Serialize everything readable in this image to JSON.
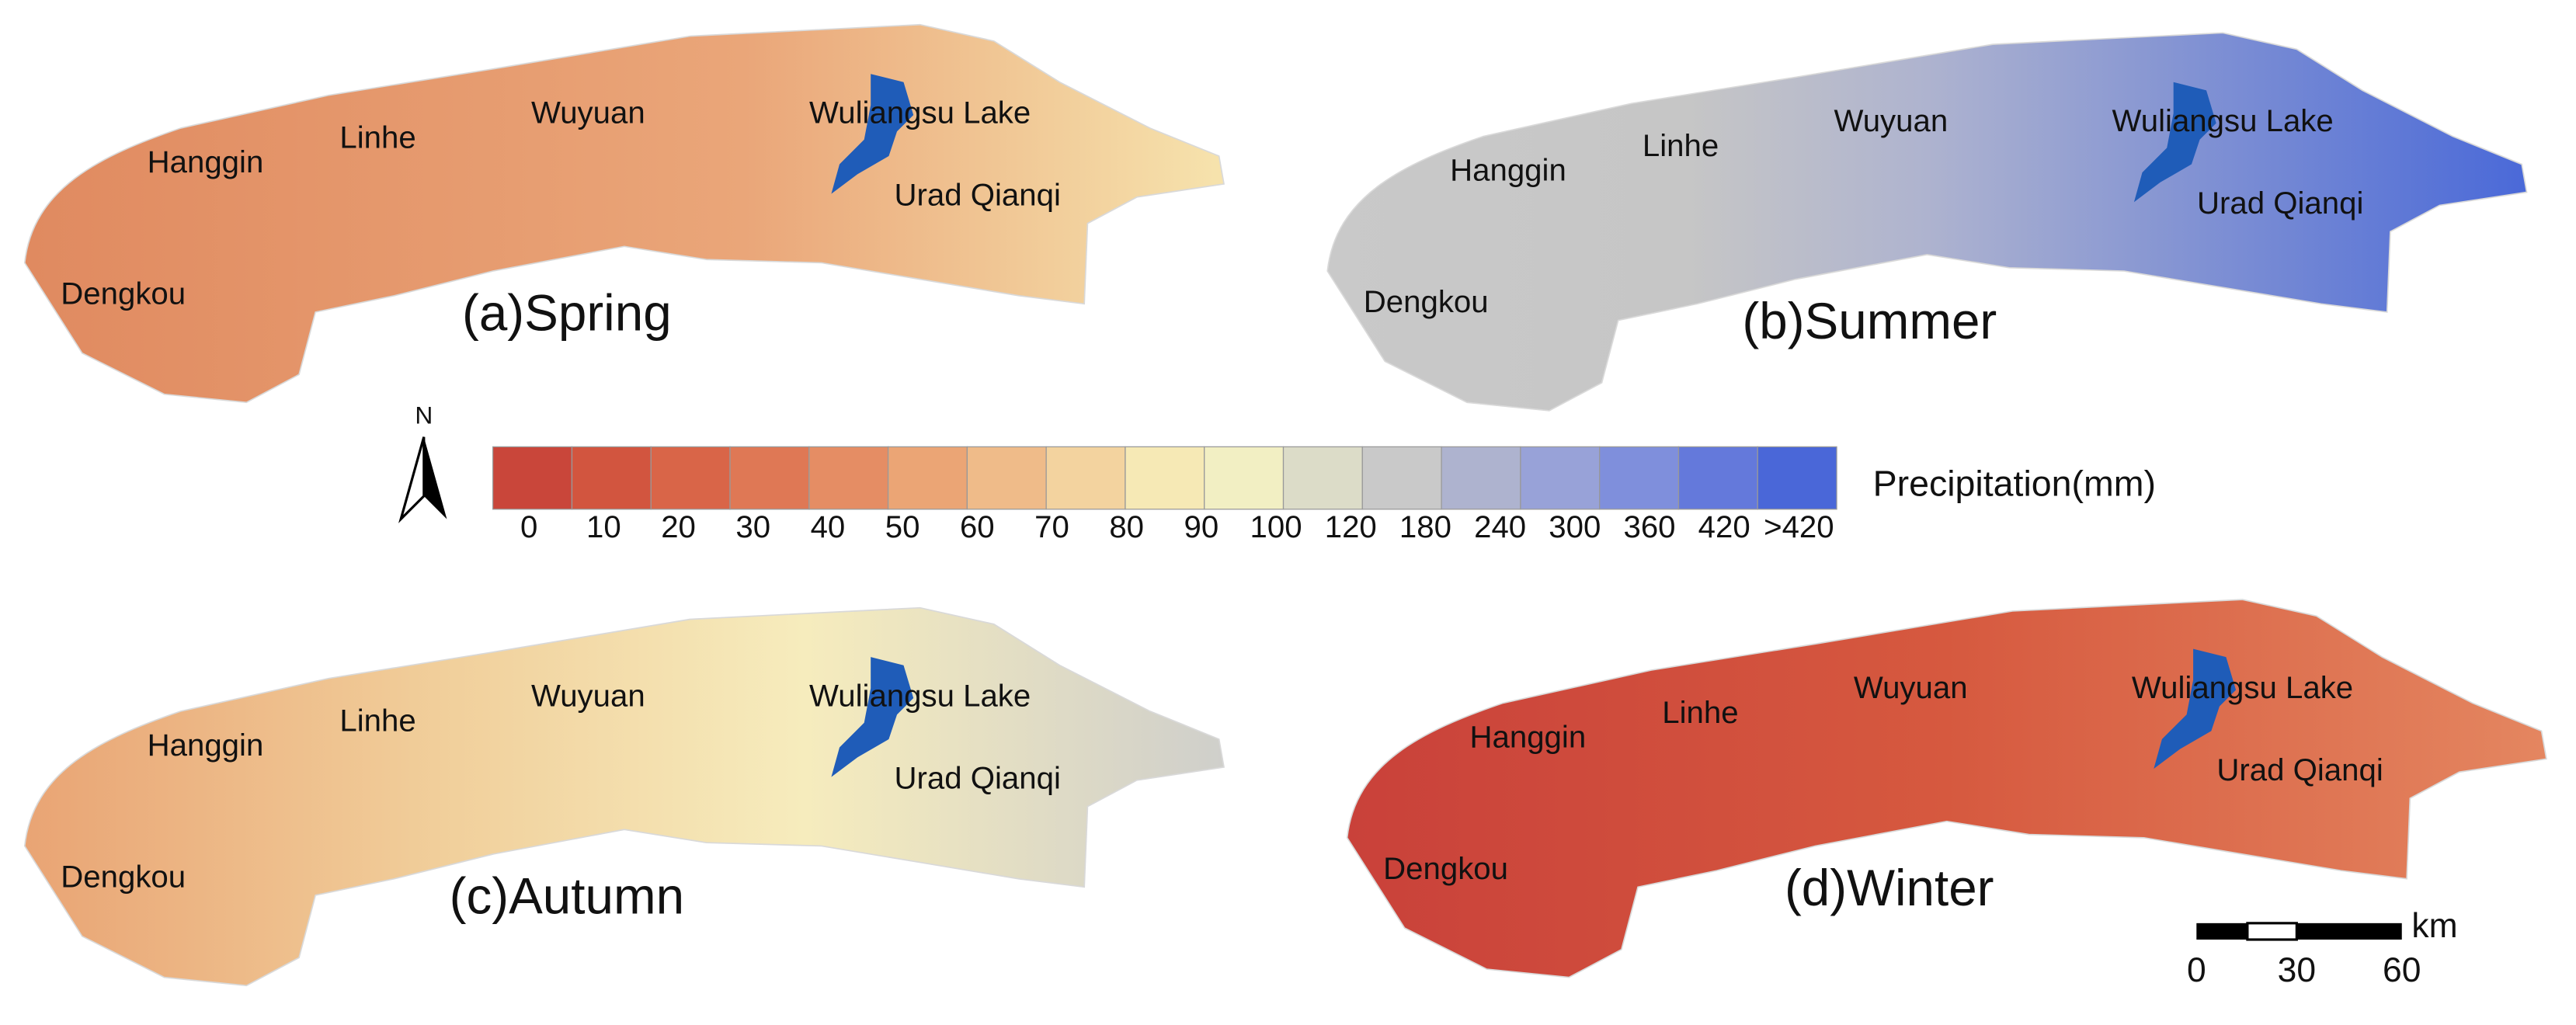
{
  "panels": [
    {
      "title": "(a)Spring",
      "places": [
        "Hanggin",
        "Linhe",
        "Wuyuan",
        "Wuliangsu Lake",
        "Urad Qianqi",
        "Dengkou"
      ]
    },
    {
      "title": "(b)Summer",
      "places": [
        "Hanggin",
        "Linhe",
        "Wuyuan",
        "Wuliangsu Lake",
        "Urad Qianqi",
        "Dengkou"
      ]
    },
    {
      "title": "(c)Autumn",
      "places": [
        "Hanggin",
        "Linhe",
        "Wuyuan",
        "Wuliangsu Lake",
        "Urad Qianqi",
        "Dengkou"
      ]
    },
    {
      "title": "(d)Winter",
      "places": [
        "Hanggin",
        "Linhe",
        "Wuyuan",
        "Wuliangsu Lake",
        "Urad Qianqi",
        "Dengkou"
      ]
    }
  ],
  "legend": {
    "title": "Precipitation(mm)",
    "colors": [
      "#c9463a",
      "#d2553f",
      "#d96548",
      "#df7855",
      "#e58d64",
      "#eba575",
      "#efbb89",
      "#f3d39f",
      "#f6e9b5",
      "#f2efc3",
      "#dcdcc8",
      "#c9c9c9",
      "#aeb3cf",
      "#98a2d8",
      "#7f8fdc",
      "#6479db",
      "#4a67d8",
      "#3a5ed8"
    ],
    "labels": [
      "0",
      "10",
      "20",
      "30",
      "40",
      "50",
      "60",
      "70",
      "80",
      "90",
      "100",
      "120",
      "180",
      "240",
      "300",
      "360",
      "420",
      ">420"
    ]
  },
  "north": "N",
  "scale_bar": {
    "unit": "km",
    "labels": [
      "0",
      "30",
      "60"
    ]
  }
}
